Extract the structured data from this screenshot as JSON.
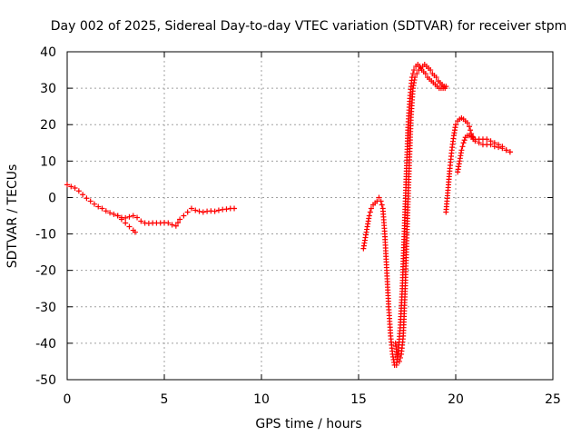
{
  "chart_data": {
    "type": "scatter",
    "title": "Day 002 of 2025, Sidereal Day-to-day VTEC variation (SDTVAR) for receiver stpm",
    "xlabel": "GPS time / hours",
    "ylabel": "SDTVAR / TECUs",
    "xlim": [
      0,
      25
    ],
    "ylim": [
      -50,
      40
    ],
    "xticks": [
      0,
      5,
      10,
      15,
      20,
      25
    ],
    "yticks": [
      -50,
      -40,
      -30,
      -20,
      -10,
      0,
      10,
      20,
      30,
      40
    ],
    "grid": true,
    "marker": "+",
    "color": "#ff0000",
    "series": [
      {
        "name": "segment-1",
        "x": [
          0.0,
          0.2,
          0.4,
          0.6,
          0.8,
          1.0,
          1.2,
          1.4,
          1.6,
          1.8,
          2.0,
          2.2,
          2.4,
          2.6,
          2.8,
          3.0,
          3.2,
          3.4,
          3.5
        ],
        "y": [
          3.5,
          3.0,
          2.6,
          1.8,
          0.8,
          -0.2,
          -1.0,
          -1.8,
          -2.5,
          -3.0,
          -3.7,
          -4.2,
          -4.6,
          -5.0,
          -6.0,
          -7.0,
          -8.0,
          -9.0,
          -9.5
        ]
      },
      {
        "name": "segment-2",
        "x": [
          2.6,
          2.8,
          3.0,
          3.2,
          3.4,
          3.6,
          3.8,
          4.0,
          4.2,
          4.4,
          4.6,
          4.8,
          5.0,
          5.2,
          5.4,
          5.6,
          5.8,
          6.0,
          6.2,
          6.4,
          6.6,
          6.8,
          7.0,
          7.2,
          7.4,
          7.6,
          7.8,
          8.0,
          8.2,
          8.4,
          8.6
        ],
        "y": [
          -5.0,
          -5.5,
          -5.6,
          -5.3,
          -5.0,
          -5.5,
          -6.5,
          -7.0,
          -7.1,
          -7.0,
          -7.0,
          -7.0,
          -6.9,
          -7.0,
          -7.5,
          -7.8,
          -6.0,
          -5.0,
          -4.0,
          -3.0,
          -3.5,
          -3.8,
          -4.0,
          -3.8,
          -3.7,
          -3.8,
          -3.5,
          -3.3,
          -3.2,
          -3.0,
          -3.0
        ]
      },
      {
        "name": "segment-3",
        "x": [
          15.25,
          15.35,
          15.45,
          15.55,
          15.65,
          15.75,
          15.85,
          15.95,
          16.05,
          16.15,
          16.25,
          16.35,
          16.45,
          16.55,
          16.65,
          16.75,
          16.85,
          16.95,
          17.05,
          17.15,
          17.25,
          17.35,
          17.45,
          17.55,
          17.65,
          17.75,
          17.85,
          17.95,
          18.05,
          18.15,
          18.25,
          18.35,
          18.45,
          18.55,
          18.65,
          18.75,
          18.85,
          18.95,
          19.05,
          19.15,
          19.25,
          19.35,
          19.45
        ],
        "y": [
          -14,
          -11,
          -8,
          -5,
          -3,
          -2,
          -1.5,
          -1,
          0,
          -1,
          -3,
          -10,
          -20,
          -30,
          -38,
          -43,
          -46,
          -46,
          -42,
          -35,
          -25,
          -10,
          5,
          20,
          28,
          33,
          35,
          36,
          36.5,
          36,
          35,
          34.5,
          34,
          33,
          32.5,
          32,
          31.5,
          31,
          30.5,
          30,
          30,
          30,
          30
        ]
      },
      {
        "name": "segment-3b",
        "x": [
          16.9,
          17.0,
          17.1,
          17.2,
          17.3,
          17.4,
          17.5,
          17.6,
          17.7,
          17.8,
          17.9,
          18.0,
          18.1,
          18.2,
          18.3,
          18.4,
          18.5,
          18.6,
          18.7,
          18.8,
          18.9,
          19.0,
          19.1,
          19.2,
          19.3,
          19.4,
          19.5
        ],
        "y": [
          -40,
          -44,
          -45,
          -43,
          -38,
          -25,
          -8,
          8,
          22,
          30,
          33,
          34,
          35,
          35.5,
          36,
          36.5,
          36,
          35.5,
          35,
          34,
          33.5,
          33,
          32,
          31.5,
          31,
          30.5,
          30.5
        ]
      },
      {
        "name": "segment-4",
        "x": [
          19.5,
          19.6,
          19.7,
          19.8,
          19.9,
          20.0,
          20.1,
          20.2,
          20.3,
          20.4,
          20.5,
          20.6,
          20.7,
          20.8,
          20.9,
          21.0,
          21.2,
          21.4,
          21.6,
          21.8,
          22.0,
          22.2,
          22.4,
          22.6,
          22.8
        ],
        "y": [
          -4,
          2,
          8,
          13,
          17,
          20,
          21,
          21.5,
          21.8,
          21.5,
          21,
          20.5,
          19.5,
          17.5,
          16,
          15.5,
          15,
          14.5,
          14.5,
          14.5,
          14,
          13.8,
          13.5,
          13,
          12.5
        ]
      },
      {
        "name": "segment-4b",
        "x": [
          20.1,
          20.2,
          20.3,
          20.4,
          20.5,
          20.6,
          20.7,
          20.8,
          20.9,
          21.0,
          21.2,
          21.4,
          21.6,
          21.8,
          22.0,
          22.2,
          22.4,
          22.6,
          22.8
        ],
        "y": [
          7,
          10,
          13,
          15,
          16.5,
          17,
          17,
          16.8,
          16.5,
          16,
          16,
          16,
          16,
          15.5,
          15,
          14.5,
          14,
          13,
          12.5
        ]
      }
    ]
  }
}
